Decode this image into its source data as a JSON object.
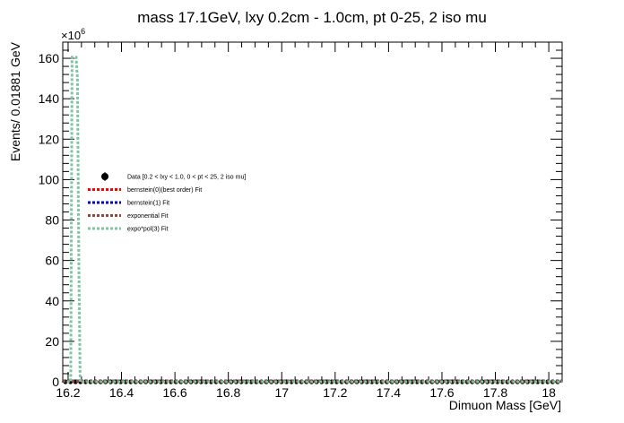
{
  "chart_data": {
    "type": "line",
    "title": "mass 17.1GeV, lxy 0.2cm - 1.0cm, pt 0-25, 2 iso mu",
    "xlabel": "Dimuon Mass [GeV]",
    "ylabel": "Events/ 0.01881 GeV",
    "y_multiplier": "×10",
    "y_multiplier_exponent": "6",
    "xlim": [
      16.18,
      18.05
    ],
    "ylim": [
      0,
      168
    ],
    "x_ticks": [
      "16.2",
      "16.4",
      "16.6",
      "16.8",
      "17",
      "17.2",
      "17.4",
      "17.6",
      "17.8",
      "18"
    ],
    "x_tick_values": [
      16.2,
      16.4,
      16.6,
      16.8,
      17.0,
      17.2,
      17.4,
      17.6,
      17.8,
      18.0
    ],
    "y_ticks": [
      "0",
      "20",
      "40",
      "60",
      "80",
      "100",
      "120",
      "140",
      "160"
    ],
    "y_tick_values": [
      0,
      20,
      40,
      60,
      80,
      100,
      120,
      140,
      160
    ],
    "legend_position": "left-center",
    "legend": [
      {
        "label": "Data [0.2 < lxy < 1.0, 0 < pt < 25, 2 iso mu]",
        "color": "#000000",
        "style": "marker"
      },
      {
        "label": "bernstein(0)(best order) Fit",
        "color": "#ff0000",
        "style": "dashed",
        "text_color": "#ff0000"
      },
      {
        "label": "bernstein(1) Fit",
        "color": "#0000cc",
        "style": "dashed",
        "text_color": "#000000"
      },
      {
        "label": "exponential Fit",
        "color": "#8b4a3c",
        "style": "dashed",
        "text_color": "#000000"
      },
      {
        "label": "expo*pol(3) Fit",
        "color": "#7fc4a4",
        "style": "dashed",
        "text_color": "#000000"
      }
    ],
    "series": [
      {
        "name": "Data [0.2 < lxy < 1.0, 0 < pt < 25, 2 iso mu]",
        "kind": "points",
        "color": "#000000",
        "x_start": 16.19,
        "x_step": 0.01881,
        "count": 99,
        "value": 0
      },
      {
        "name": "bernstein(0)(best order) Fit",
        "kind": "line",
        "color": "#ff0000",
        "x": [
          16.18,
          18.05
        ],
        "y": [
          0.3,
          0.3
        ]
      },
      {
        "name": "bernstein(1) Fit",
        "kind": "line",
        "color": "#0000cc",
        "x": [
          16.18,
          18.05
        ],
        "y": [
          0.3,
          0.3
        ]
      },
      {
        "name": "exponential Fit",
        "kind": "line",
        "color": "#8b4a3c",
        "x": [
          16.18,
          18.05
        ],
        "y": [
          0.3,
          0.3
        ]
      },
      {
        "name": "expo*pol(3) Fit",
        "kind": "line",
        "color": "#7fc4a4",
        "x": [
          16.195,
          16.2,
          16.205,
          16.21,
          16.215,
          16.22,
          16.225,
          16.23,
          16.235,
          16.24,
          16.245,
          16.25,
          16.26,
          16.3,
          18.05
        ],
        "y": [
          0,
          0,
          0,
          0,
          160.5,
          160.5,
          160.5,
          160.5,
          150,
          60,
          0,
          0,
          0,
          0,
          0
        ]
      }
    ]
  }
}
